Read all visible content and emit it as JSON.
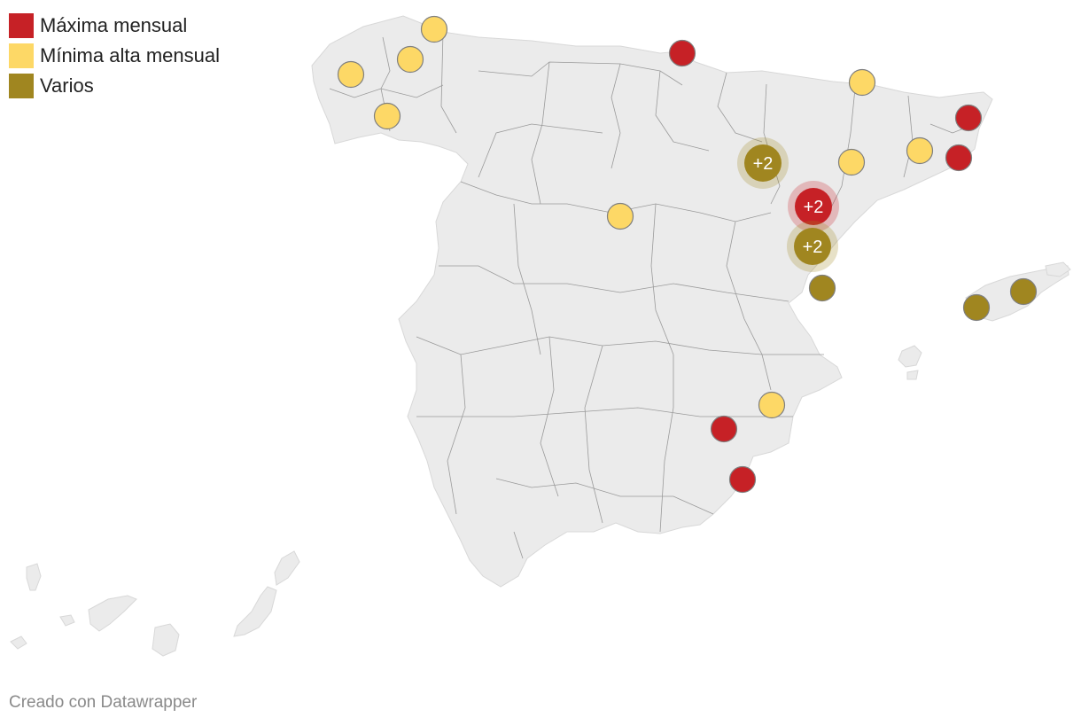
{
  "legend": [
    {
      "label": "Máxima mensual",
      "color": "#c62126"
    },
    {
      "label": "Mínima alta mensual",
      "color": "#fdd866"
    },
    {
      "label": "Varios",
      "color": "#a08620"
    }
  ],
  "colors": {
    "land": "#ebebeb",
    "border": "#9a9a9a",
    "marker_stroke": "#7f7f7f"
  },
  "markers": [
    {
      "category": "Mínima alta mensual",
      "label": ""
    },
    {
      "category": "Mínima alta mensual",
      "label": ""
    },
    {
      "category": "Mínima alta mensual",
      "label": ""
    },
    {
      "category": "Mínima alta mensual",
      "label": ""
    },
    {
      "category": "Máxima mensual",
      "label": ""
    },
    {
      "category": "Mínima alta mensual",
      "label": ""
    },
    {
      "category": "Máxima mensual",
      "label": ""
    },
    {
      "category": "Máxima mensual",
      "label": ""
    },
    {
      "category": "Mínima alta mensual",
      "label": ""
    },
    {
      "category": "Mínima alta mensual",
      "label": ""
    },
    {
      "category": "Varios",
      "label": "+2"
    },
    {
      "category": "Máxima mensual",
      "label": "+2"
    },
    {
      "category": "Varios",
      "label": "+2"
    },
    {
      "category": "Mínima alta mensual",
      "label": ""
    },
    {
      "category": "Varios",
      "label": ""
    },
    {
      "category": "Varios",
      "label": ""
    },
    {
      "category": "Varios",
      "label": ""
    },
    {
      "category": "Mínima alta mensual",
      "label": ""
    },
    {
      "category": "Máxima mensual",
      "label": ""
    },
    {
      "category": "Máxima mensual",
      "label": ""
    }
  ],
  "credit": "Creado con Datawrapper"
}
